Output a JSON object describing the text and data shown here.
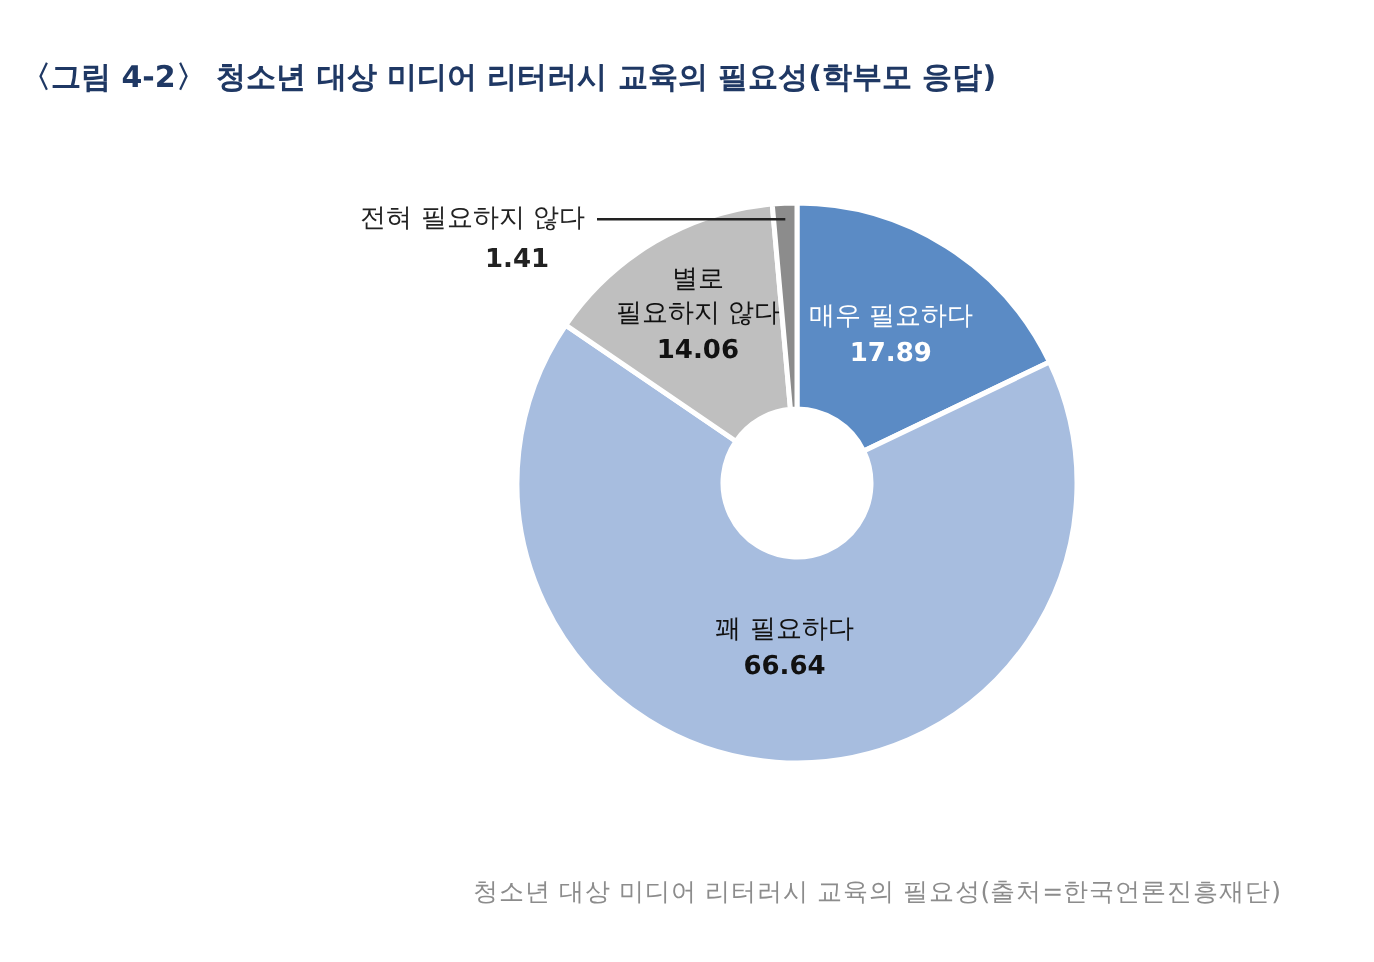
{
  "chart_data": {
    "type": "donut",
    "title": "〈그림 4-2〉 청소년 대상 미디어 리터러시 교육의 필요성(학부모 응답)",
    "categories": [
      "매우 필요하다",
      "꽤 필요하다",
      "별로 필요하지 않다",
      "전혀 필요하지 않다"
    ],
    "values": [
      17.89,
      66.64,
      14.06,
      1.41
    ],
    "colors": [
      "#5b8bc5",
      "#a7bddf",
      "#bfbfbf",
      "#8c8c8c"
    ],
    "data_labels": true,
    "annotations": [
      "청소년 대상 미디어 리터러시 교육의 필요성(출처=한국언론진흥재단)"
    ]
  }
}
